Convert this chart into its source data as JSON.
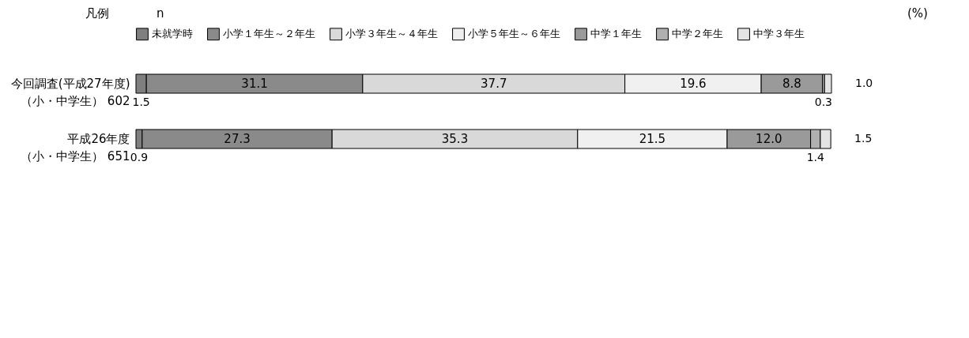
{
  "chart_data": {
    "type": "bar",
    "orientation": "horizontal",
    "stacked": true,
    "categories": [
      "今回調査(平成27年度)（小・中学生） 602",
      "平成26年度（小・中学生） 651"
    ],
    "xlim": [
      0,
      100
    ],
    "tick_labels": "y",
    "series": [
      {
        "name": "未就学時",
        "color": "#7f7f7f",
        "values": [
          1.5,
          0.9
        ],
        "value_labels": [
          "1.5",
          "0.9"
        ]
      },
      {
        "name": "小学１年生～２年生",
        "color": "#8a8a8a",
        "values": [
          31.1,
          27.3
        ],
        "value_labels": [
          "31.1",
          "27.3"
        ]
      },
      {
        "name": "小学３年生～４年生",
        "color": "#d9d9d9",
        "values": [
          37.7,
          35.3
        ],
        "value_labels": [
          "37.7",
          "35.3"
        ]
      },
      {
        "name": "小学５年生～６年生",
        "color": "#f0f0f0",
        "values": [
          19.6,
          21.5
        ],
        "value_labels": [
          "19.6",
          "21.5"
        ]
      },
      {
        "name": "中学１年生",
        "color": "#9a9a9a",
        "values": [
          8.8,
          12.0
        ],
        "value_labels": [
          "8.8",
          "12.0"
        ]
      },
      {
        "name": "中学２年生",
        "color": "#b0b0b0",
        "values": [
          0.3,
          1.4
        ],
        "value_labels": [
          "0.3",
          "1.4"
        ]
      },
      {
        "name": "中学３年生",
        "color": "#e4e4e4",
        "values": [
          1.0,
          1.5
        ],
        "value_labels": [
          "1.0",
          "1.5"
        ]
      }
    ],
    "legend": "top",
    "annotations": [
      "凡例",
      "n",
      "(%)"
    ]
  }
}
